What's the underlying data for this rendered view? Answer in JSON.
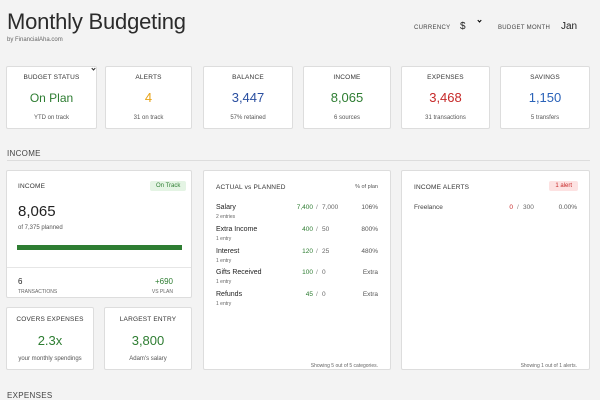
{
  "header": {
    "title": "Monthly Budgeting",
    "subtitle": "by FinancialAha.com",
    "currency_label": "CURRENCY",
    "currency_value": "$",
    "budget_month_label": "BUDGET MONTH",
    "budget_month_value": "Jan"
  },
  "summary_cards": [
    {
      "title": "BUDGET STATUS",
      "value": "On Plan",
      "sub": "YTD on track",
      "color": "#2e7d32"
    },
    {
      "title": "ALERTS",
      "value": "4",
      "sub": "31 on track",
      "color": "#e8a317"
    },
    {
      "title": "BALANCE",
      "value": "3,447",
      "sub": "57% retained",
      "color": "#2a4fa0"
    },
    {
      "title": "INCOME",
      "value": "8,065",
      "sub": "6 sources",
      "color": "#2e7d32"
    },
    {
      "title": "EXPENSES",
      "value": "3,468",
      "sub": "31 transactions",
      "color": "#c62828"
    },
    {
      "title": "SAVINGS",
      "value": "1,150",
      "sub": "5 transfers",
      "color": "#2a62b8"
    }
  ],
  "income_section": {
    "label": "INCOME",
    "income_card": {
      "title": "INCOME",
      "badge": "On Track",
      "value": "8,065",
      "planned": "of 7,375 planned",
      "progress_fraction": 1.0,
      "transactions_count": "6",
      "transactions_label": "TRANSACTIONS",
      "vs_plan_value": "+690",
      "vs_plan_label": "VS PLAN"
    },
    "covers_card": {
      "title": "COVERS EXPENSES",
      "value": "2.3x",
      "sub": "your monthly spendings"
    },
    "largest_card": {
      "title": "LARGEST ENTRY",
      "value": "3,800",
      "sub": "Adam's salary"
    },
    "actual_vs_planned": {
      "title": "ACTUAL vs PLANNED",
      "column_label": "% of plan",
      "rows": [
        {
          "label": "Salary",
          "sub": "2 entries",
          "actual": "7,400",
          "sep": "/",
          "plan": "7,000",
          "pct": "106%"
        },
        {
          "label": "Extra Income",
          "sub": "1 entry",
          "actual": "400",
          "sep": "/",
          "plan": "50",
          "pct": "800%"
        },
        {
          "label": "Interest",
          "sub": "1 entry",
          "actual": "120",
          "sep": "/",
          "plan": "25",
          "pct": "480%"
        },
        {
          "label": "Gifts Received",
          "sub": "1 entry",
          "actual": "100",
          "sep": "/",
          "plan": "0",
          "pct": "Extra"
        },
        {
          "label": "Refunds",
          "sub": "1 entry",
          "actual": "45",
          "sep": "/",
          "plan": "0",
          "pct": "Extra"
        }
      ],
      "footer": "Showing 5 out of 5 categories."
    },
    "income_alerts": {
      "title": "INCOME ALERTS",
      "badge": "1 alert",
      "rows": [
        {
          "label": "Freelance",
          "actual": "0",
          "sep": "/",
          "plan": "300",
          "pct": "0.00%"
        }
      ],
      "footer": "Showing 1 out of 1 alerts."
    }
  },
  "expenses_section": {
    "label": "EXPENSES"
  }
}
